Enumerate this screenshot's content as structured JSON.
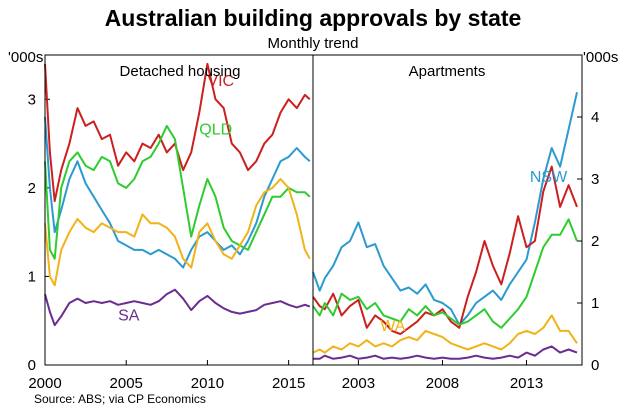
{
  "chart_data": {
    "title": "Australian building approvals by state",
    "subtitle": "Monthly trend",
    "source": "Source: ABS; via CP Economics",
    "type": "line",
    "panels": [
      {
        "title": "Detached housing",
        "y_unit": "'000s",
        "ylim": [
          0,
          3.5
        ],
        "yticks": [
          0,
          1,
          2,
          3
        ],
        "xlim": [
          2000,
          2016.5
        ],
        "xticks": [
          2000,
          2005,
          2010,
          2015
        ],
        "series": [
          {
            "name": "VIC",
            "color": "#cc1f1f",
            "label_at": [
              2010,
              3.15
            ],
            "x": [
              2000,
              2000.3,
              2000.6,
              2001,
              2001.5,
              2002,
              2002.5,
              2003,
              2003.5,
              2004,
              2004.5,
              2005,
              2005.5,
              2006,
              2006.5,
              2007,
              2007.5,
              2008,
              2008.5,
              2009,
              2009.5,
              2010,
              2010.5,
              2011,
              2011.5,
              2012,
              2012.5,
              2013,
              2013.5,
              2014,
              2014.5,
              2015,
              2015.5,
              2016,
              2016.3
            ],
            "y": [
              3.4,
              2.4,
              1.85,
              2.2,
              2.5,
              2.9,
              2.7,
              2.75,
              2.55,
              2.6,
              2.25,
              2.4,
              2.3,
              2.5,
              2.45,
              2.6,
              2.4,
              2.5,
              2.2,
              2.4,
              2.85,
              3.4,
              3.0,
              2.9,
              2.5,
              2.4,
              2.2,
              2.3,
              2.5,
              2.6,
              2.85,
              3.0,
              2.9,
              3.05,
              3.0
            ]
          },
          {
            "name": "NSW",
            "color": "#2b9ad1",
            "x": [
              2000,
              2000.3,
              2000.6,
              2001,
              2001.5,
              2002,
              2002.5,
              2003,
              2003.5,
              2004,
              2004.5,
              2005,
              2005.5,
              2006,
              2006.5,
              2007,
              2007.5,
              2008,
              2008.5,
              2009,
              2009.5,
              2010,
              2010.5,
              2011,
              2011.5,
              2012,
              2012.5,
              2013,
              2013.5,
              2014,
              2014.5,
              2015,
              2015.5,
              2016,
              2016.3
            ],
            "y": [
              2.8,
              2.0,
              1.5,
              1.75,
              2.1,
              2.3,
              2.05,
              1.9,
              1.75,
              1.6,
              1.4,
              1.35,
              1.3,
              1.3,
              1.25,
              1.3,
              1.25,
              1.2,
              1.1,
              1.3,
              1.45,
              1.5,
              1.4,
              1.3,
              1.35,
              1.25,
              1.4,
              1.6,
              1.9,
              2.1,
              2.3,
              2.35,
              2.45,
              2.35,
              2.3
            ]
          },
          {
            "name": "QLD",
            "color": "#2ecc2e",
            "label_at": [
              2009.5,
              2.6
            ],
            "x": [
              2000,
              2000.3,
              2000.6,
              2001,
              2001.5,
              2002,
              2002.5,
              2003,
              2003.5,
              2004,
              2004.5,
              2005,
              2005.5,
              2006,
              2006.5,
              2007,
              2007.5,
              2008,
              2008.5,
              2009,
              2009.5,
              2010,
              2010.5,
              2011,
              2011.5,
              2012,
              2012.5,
              2013,
              2013.5,
              2014,
              2014.5,
              2015,
              2015.5,
              2016,
              2016.3
            ],
            "y": [
              2.3,
              1.3,
              1.2,
              2.0,
              2.3,
              2.4,
              2.25,
              2.2,
              2.35,
              2.3,
              2.05,
              2.0,
              2.1,
              2.3,
              2.35,
              2.5,
              2.7,
              2.55,
              2.0,
              1.45,
              1.8,
              2.1,
              1.9,
              1.55,
              1.4,
              1.35,
              1.3,
              1.5,
              1.7,
              1.9,
              1.9,
              2.0,
              1.95,
              1.95,
              1.9
            ]
          },
          {
            "name": "WA",
            "color": "#f0b318",
            "x": [
              2000,
              2000.3,
              2000.6,
              2001,
              2001.5,
              2002,
              2002.5,
              2003,
              2003.5,
              2004,
              2004.5,
              2005,
              2005.5,
              2006,
              2006.5,
              2007,
              2007.5,
              2008,
              2008.5,
              2009,
              2009.5,
              2010,
              2010.5,
              2011,
              2011.5,
              2012,
              2012.5,
              2013,
              2013.5,
              2014,
              2014.5,
              2015,
              2015.5,
              2016,
              2016.3
            ],
            "y": [
              1.6,
              1.0,
              0.9,
              1.3,
              1.5,
              1.65,
              1.55,
              1.5,
              1.6,
              1.55,
              1.5,
              1.5,
              1.45,
              1.7,
              1.6,
              1.6,
              1.55,
              1.45,
              1.2,
              1.1,
              1.5,
              1.6,
              1.4,
              1.25,
              1.2,
              1.35,
              1.5,
              1.8,
              1.95,
              2.0,
              2.1,
              2.0,
              1.7,
              1.3,
              1.2
            ]
          },
          {
            "name": "SA",
            "color": "#6a2c91",
            "label_at": [
              2004.5,
              0.5
            ],
            "x": [
              2000,
              2000.3,
              2000.6,
              2001,
              2001.5,
              2002,
              2002.5,
              2003,
              2003.5,
              2004,
              2004.5,
              2005,
              2005.5,
              2006,
              2006.5,
              2007,
              2007.5,
              2008,
              2008.5,
              2009,
              2009.5,
              2010,
              2010.5,
              2011,
              2011.5,
              2012,
              2012.5,
              2013,
              2013.5,
              2014,
              2014.5,
              2015,
              2015.5,
              2016,
              2016.3
            ],
            "y": [
              0.8,
              0.6,
              0.45,
              0.55,
              0.7,
              0.75,
              0.7,
              0.72,
              0.7,
              0.72,
              0.68,
              0.7,
              0.72,
              0.7,
              0.68,
              0.72,
              0.8,
              0.85,
              0.75,
              0.62,
              0.72,
              0.78,
              0.7,
              0.64,
              0.6,
              0.58,
              0.6,
              0.62,
              0.68,
              0.7,
              0.72,
              0.68,
              0.65,
              0.68,
              0.66
            ]
          }
        ]
      },
      {
        "title": "Apartments",
        "y_unit": "'000s",
        "ylim": [
          0,
          5
        ],
        "yticks": [
          0,
          1,
          2,
          3,
          4
        ],
        "xlim": [
          2000.3,
          2016.3
        ],
        "xticks": [
          2003,
          2008,
          2013
        ],
        "series": [
          {
            "name": "NSW",
            "color": "#2b9ad1",
            "label_at": [
              2013.2,
              2.95
            ],
            "x": [
              2000.3,
              2000.7,
              2001,
              2001.5,
              2002,
              2002.5,
              2003,
              2003.5,
              2004,
              2004.5,
              2005,
              2005.5,
              2006,
              2006.5,
              2007,
              2007.5,
              2008,
              2008.5,
              2009,
              2009.5,
              2010,
              2010.5,
              2011,
              2011.5,
              2012,
              2012.5,
              2013,
              2013.5,
              2014,
              2014.5,
              2015,
              2015.5,
              2016
            ],
            "y": [
              1.5,
              1.2,
              1.4,
              1.6,
              1.9,
              2.0,
              2.3,
              1.9,
              1.95,
              1.6,
              1.4,
              1.2,
              1.25,
              1.15,
              1.3,
              1.05,
              1.0,
              0.9,
              0.65,
              0.8,
              1.0,
              1.1,
              1.2,
              1.05,
              1.3,
              1.5,
              1.7,
              2.3,
              3.0,
              3.5,
              3.2,
              3.8,
              4.4
            ]
          },
          {
            "name": "VIC",
            "color": "#cc1f1f",
            "x": [
              2000.3,
              2000.7,
              2001,
              2001.5,
              2002,
              2002.5,
              2003,
              2003.5,
              2004,
              2004.5,
              2005,
              2005.5,
              2006,
              2006.5,
              2007,
              2007.5,
              2008,
              2008.5,
              2009,
              2009.5,
              2010,
              2010.5,
              2011,
              2011.5,
              2012,
              2012.5,
              2013,
              2013.5,
              2014,
              2014.5,
              2015,
              2015.5,
              2016
            ],
            "y": [
              1.1,
              0.95,
              0.9,
              1.15,
              0.8,
              0.95,
              1.05,
              0.6,
              0.8,
              0.7,
              0.55,
              0.5,
              0.6,
              0.7,
              0.85,
              0.8,
              0.9,
              0.7,
              0.6,
              1.1,
              1.5,
              2.0,
              1.6,
              1.3,
              1.8,
              2.4,
              1.9,
              2.0,
              2.8,
              3.2,
              2.55,
              2.9,
              2.55
            ]
          },
          {
            "name": "QLD",
            "color": "#2ecc2e",
            "x": [
              2000.3,
              2000.7,
              2001,
              2001.5,
              2002,
              2002.5,
              2003,
              2003.5,
              2004,
              2004.5,
              2005,
              2005.5,
              2006,
              2006.5,
              2007,
              2007.5,
              2008,
              2008.5,
              2009,
              2009.5,
              2010,
              2010.5,
              2011,
              2011.5,
              2012,
              2012.5,
              2013,
              2013.5,
              2014,
              2014.5,
              2015,
              2015.5,
              2016
            ],
            "y": [
              0.95,
              0.8,
              1.0,
              0.8,
              1.15,
              1.05,
              1.1,
              0.9,
              1.0,
              0.8,
              0.75,
              0.7,
              0.9,
              0.8,
              0.95,
              0.8,
              0.85,
              0.75,
              0.65,
              0.7,
              0.8,
              0.9,
              0.7,
              0.6,
              0.75,
              0.9,
              1.1,
              1.5,
              1.9,
              2.1,
              2.1,
              2.35,
              2.0
            ]
          },
          {
            "name": "WA",
            "color": "#f0b318",
            "label_at": [
              2004.3,
              0.55
            ],
            "x": [
              2000.3,
              2000.7,
              2001,
              2001.5,
              2002,
              2002.5,
              2003,
              2003.5,
              2004,
              2004.5,
              2005,
              2005.5,
              2006,
              2006.5,
              2007,
              2007.5,
              2008,
              2008.5,
              2009,
              2009.5,
              2010,
              2010.5,
              2011,
              2011.5,
              2012,
              2012.5,
              2013,
              2013.5,
              2014,
              2014.5,
              2015,
              2015.5,
              2016
            ],
            "y": [
              0.2,
              0.25,
              0.2,
              0.3,
              0.25,
              0.35,
              0.3,
              0.4,
              0.3,
              0.35,
              0.3,
              0.4,
              0.45,
              0.4,
              0.55,
              0.5,
              0.45,
              0.35,
              0.3,
              0.25,
              0.3,
              0.35,
              0.3,
              0.25,
              0.35,
              0.5,
              0.55,
              0.5,
              0.6,
              0.8,
              0.55,
              0.55,
              0.35
            ]
          },
          {
            "name": "SA",
            "color": "#6a2c91",
            "x": [
              2000.3,
              2000.7,
              2001,
              2001.5,
              2002,
              2002.5,
              2003,
              2003.5,
              2004,
              2004.5,
              2005,
              2005.5,
              2006,
              2006.5,
              2007,
              2007.5,
              2008,
              2008.5,
              2009,
              2009.5,
              2010,
              2010.5,
              2011,
              2011.5,
              2012,
              2012.5,
              2013,
              2013.5,
              2014,
              2014.5,
              2015,
              2015.5,
              2016
            ],
            "y": [
              0.1,
              0.1,
              0.15,
              0.1,
              0.12,
              0.15,
              0.1,
              0.12,
              0.15,
              0.1,
              0.12,
              0.1,
              0.12,
              0.15,
              0.12,
              0.1,
              0.12,
              0.1,
              0.1,
              0.12,
              0.15,
              0.12,
              0.1,
              0.12,
              0.15,
              0.12,
              0.2,
              0.15,
              0.25,
              0.3,
              0.2,
              0.25,
              0.2
            ]
          }
        ]
      }
    ]
  }
}
